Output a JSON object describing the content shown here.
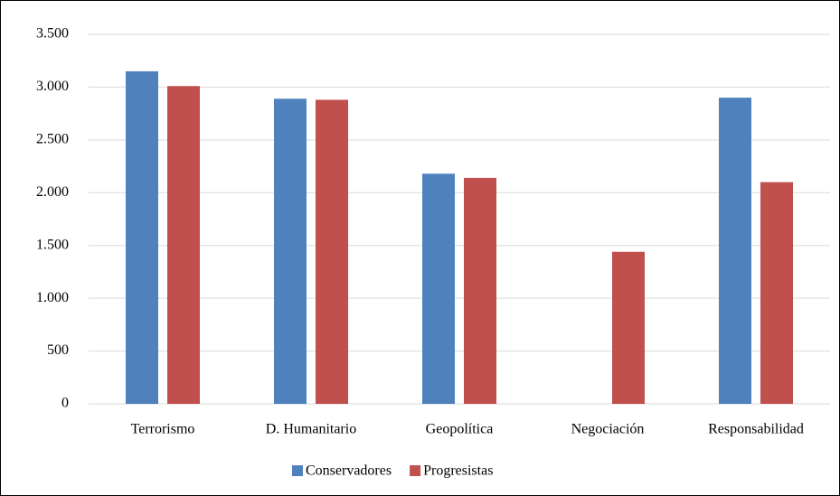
{
  "chart_data": {
    "type": "bar",
    "categories": [
      "Terrorismo",
      "D. Humanitario",
      "Geopolítica",
      "Negociación",
      "Responsabilidad"
    ],
    "series": [
      {
        "name": "Conservadores",
        "color": "#4f81bd",
        "values": [
          3150,
          2890,
          2180,
          0,
          2900
        ]
      },
      {
        "name": "Progresistas",
        "color": "#c0504d",
        "values": [
          3010,
          2880,
          2140,
          1440,
          2100
        ]
      }
    ],
    "ylim": [
      0,
      3500
    ],
    "yticks": [
      0,
      500,
      {
        "value": 1000,
        "label": "1.000"
      },
      {
        "value": 1500,
        "label": "1.500"
      },
      {
        "value": 2000,
        "label": "2.000"
      },
      {
        "value": 2500,
        "label": "2.500"
      },
      {
        "value": 3000,
        "label": "3.000"
      },
      {
        "value": 3500,
        "label": "3.500"
      }
    ],
    "grid": true,
    "legend": "bottom"
  }
}
